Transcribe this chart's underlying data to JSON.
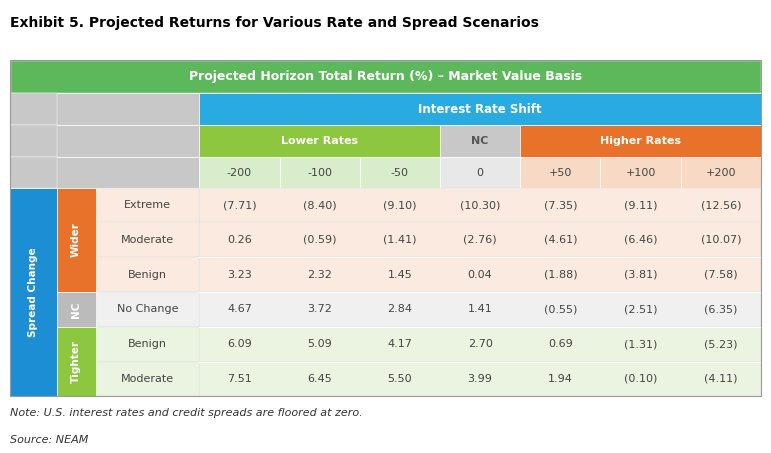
{
  "title": "Exhibit 5. Projected Returns for Various Rate and Spread Scenarios",
  "subtitle": "Projected Horizon Total Return (%) – Market Value Basis",
  "note": "Note: U.S. interest rates and credit spreads are floored at zero.",
  "source": "Source: NEAM",
  "green": "#5DB85C",
  "light_green_grp": "#8DC63F",
  "orange_grp": "#E8722A",
  "blue_irs": "#29ABE2",
  "blue_sc": "#1C8FD4",
  "nc_grp_color": "#BBBBBB",
  "gray_header": "#C8C8C8",
  "white": "#FFFFFF",
  "shift_lower_bg": "#D9EDCC",
  "shift_nc_bg": "#E8E8E8",
  "shift_higher_bg": "#F8D9C4",
  "row_wider_bg": "#FAEAE0",
  "row_nc_bg": "#F0F0F0",
  "row_tighter_bg": "#EAF4E0",
  "row_alt_bg": "#F5F5F5",
  "interest_rate_cols": [
    "-200",
    "-100",
    "-50",
    "0",
    "+50",
    "+100",
    "+200"
  ],
  "spread_rows": [
    {
      "group": "Wider",
      "label": "Extreme",
      "values": [
        "(7.71)",
        "(8.40)",
        "(9.10)",
        "(10.30)",
        "(7.35)",
        "(9.11)",
        "(12.56)"
      ]
    },
    {
      "group": "Wider",
      "label": "Moderate",
      "values": [
        "0.26",
        "(0.59)",
        "(1.41)",
        "(2.76)",
        "(4.61)",
        "(6.46)",
        "(10.07)"
      ]
    },
    {
      "group": "Wider",
      "label": "Benign",
      "values": [
        "3.23",
        "2.32",
        "1.45",
        "0.04",
        "(1.88)",
        "(3.81)",
        "(7.58)"
      ]
    },
    {
      "group": "NC",
      "label": "No Change",
      "values": [
        "4.67",
        "3.72",
        "2.84",
        "1.41",
        "(0.55)",
        "(2.51)",
        "(6.35)"
      ]
    },
    {
      "group": "Tighter",
      "label": "Benign",
      "values": [
        "6.09",
        "5.09",
        "4.17",
        "2.70",
        "0.69",
        "(1.31)",
        "(5.23)"
      ]
    },
    {
      "group": "Tighter",
      "label": "Moderate",
      "values": [
        "7.51",
        "6.45",
        "5.50",
        "3.99",
        "1.94",
        "(0.10)",
        "(4.11)"
      ]
    }
  ]
}
